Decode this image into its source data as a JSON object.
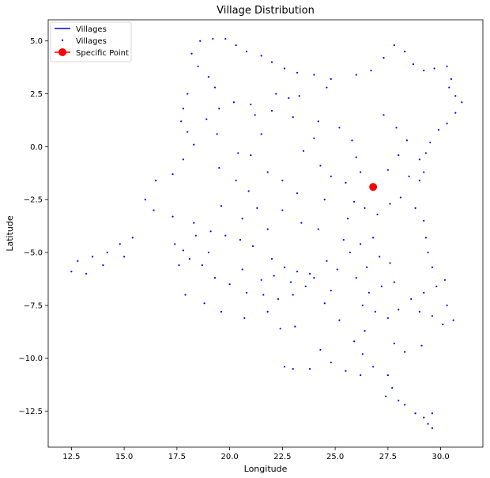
{
  "chart_data": {
    "type": "scatter",
    "title": "Village Distribution",
    "xlabel": "Longitude",
    "ylabel": "Latitude",
    "xlim": [
      11.4,
      32.0
    ],
    "ylim": [
      -14.2,
      6.0
    ],
    "xticks": [
      12.5,
      15.0,
      17.5,
      20.0,
      22.5,
      25.0,
      27.5,
      30.0
    ],
    "xtick_labels": [
      "12.5",
      "15.0",
      "17.5",
      "20.0",
      "22.5",
      "25.0",
      "27.5",
      "30.0"
    ],
    "yticks": [
      5.0,
      2.5,
      0.0,
      -2.5,
      -5.0,
      -7.5,
      -10.0,
      -12.5
    ],
    "ytick_labels": [
      "5.0",
      "2.5",
      "0.0",
      "−2.5",
      "−5.0",
      "−7.5",
      "−10.0",
      "−12.5"
    ],
    "grid": false,
    "legend_position": "upper left",
    "legend": [
      {
        "label": "Villages",
        "marker": "line",
        "color": "#0000ff"
      },
      {
        "label": "Villages",
        "marker": "dot",
        "color": "#0000ff"
      },
      {
        "label": "Specific Point",
        "marker": "circle-line",
        "color": "#ff0000"
      }
    ],
    "series": [
      {
        "name": "Villages",
        "color": "#0000ff",
        "marker": "dot",
        "points": [
          [
            18.6,
            5.0
          ],
          [
            19.2,
            5.1
          ],
          [
            19.8,
            5.1
          ],
          [
            20.3,
            4.8
          ],
          [
            20.8,
            4.5
          ],
          [
            21.5,
            4.3
          ],
          [
            18.2,
            4.4
          ],
          [
            18.5,
            3.8
          ],
          [
            19.0,
            3.3
          ],
          [
            19.3,
            2.8
          ],
          [
            18.0,
            2.5
          ],
          [
            17.8,
            1.8
          ],
          [
            17.7,
            1.2
          ],
          [
            22.0,
            4.0
          ],
          [
            22.6,
            3.7
          ],
          [
            23.2,
            3.5
          ],
          [
            24.0,
            3.4
          ],
          [
            24.8,
            3.2
          ],
          [
            22.2,
            2.5
          ],
          [
            22.8,
            2.3
          ],
          [
            23.3,
            2.4
          ],
          [
            24.6,
            2.8
          ],
          [
            26.0,
            3.4
          ],
          [
            26.7,
            3.6
          ],
          [
            27.3,
            4.2
          ],
          [
            27.8,
            4.8
          ],
          [
            28.3,
            4.5
          ],
          [
            28.7,
            3.9
          ],
          [
            29.2,
            3.6
          ],
          [
            29.7,
            3.7
          ],
          [
            30.3,
            3.8
          ],
          [
            30.5,
            3.2
          ],
          [
            30.4,
            2.8
          ],
          [
            30.7,
            2.4
          ],
          [
            31.0,
            2.1
          ],
          [
            30.7,
            1.6
          ],
          [
            30.3,
            1.1
          ],
          [
            29.9,
            0.8
          ],
          [
            29.5,
            0.2
          ],
          [
            29.3,
            -0.3
          ],
          [
            29.0,
            -0.6
          ],
          [
            29.2,
            -1.2
          ],
          [
            29.0,
            -1.6
          ],
          [
            20.2,
            2.1
          ],
          [
            21.0,
            2.0
          ],
          [
            22.0,
            1.7
          ],
          [
            23.0,
            1.4
          ],
          [
            24.2,
            1.2
          ],
          [
            25.2,
            0.9
          ],
          [
            25.8,
            0.3
          ],
          [
            26.0,
            -0.5
          ],
          [
            26.2,
            -1.2
          ],
          [
            25.5,
            -1.7
          ],
          [
            21.2,
            1.5
          ],
          [
            21.5,
            0.6
          ],
          [
            21.0,
            -0.4
          ],
          [
            21.8,
            -1.2
          ],
          [
            22.5,
            -1.6
          ],
          [
            23.2,
            -2.2
          ],
          [
            24.5,
            -2.5
          ],
          [
            18.0,
            0.7
          ],
          [
            18.3,
            0.1
          ],
          [
            17.8,
            -0.6
          ],
          [
            17.3,
            -1.3
          ],
          [
            16.5,
            -1.6
          ],
          [
            16.0,
            -2.5
          ],
          [
            16.4,
            -3.0
          ],
          [
            17.3,
            -3.3
          ],
          [
            18.3,
            -3.6
          ],
          [
            19.5,
            -1.0
          ],
          [
            20.3,
            -1.6
          ],
          [
            20.9,
            -2.1
          ],
          [
            19.6,
            -2.8
          ],
          [
            20.6,
            -3.4
          ],
          [
            21.8,
            -3.9
          ],
          [
            15.4,
            -4.3
          ],
          [
            14.8,
            -4.6
          ],
          [
            14.2,
            -5.0
          ],
          [
            13.5,
            -5.2
          ],
          [
            12.8,
            -5.4
          ],
          [
            12.5,
            -5.9
          ],
          [
            13.2,
            -6.0
          ],
          [
            14.0,
            -5.6
          ],
          [
            15.0,
            -5.2
          ],
          [
            17.4,
            -4.6
          ],
          [
            17.8,
            -4.9
          ],
          [
            18.1,
            -5.3
          ],
          [
            17.6,
            -5.6
          ],
          [
            18.4,
            -4.2
          ],
          [
            19.1,
            -4.0
          ],
          [
            19.8,
            -4.2
          ],
          [
            20.5,
            -4.4
          ],
          [
            21.1,
            -4.7
          ],
          [
            19.0,
            -5.0
          ],
          [
            18.7,
            -5.6
          ],
          [
            19.3,
            -6.2
          ],
          [
            20.0,
            -6.5
          ],
          [
            20.8,
            -6.9
          ],
          [
            21.6,
            -7.0
          ],
          [
            22.3,
            -7.2
          ],
          [
            23.0,
            -7.0
          ],
          [
            23.6,
            -6.6
          ],
          [
            24.0,
            -6.2
          ],
          [
            22.0,
            -5.3
          ],
          [
            22.6,
            -5.7
          ],
          [
            23.2,
            -5.9
          ],
          [
            23.8,
            -6.0
          ],
          [
            22.9,
            -6.4
          ],
          [
            22.1,
            -6.1
          ],
          [
            21.5,
            -6.3
          ],
          [
            20.6,
            -5.8
          ],
          [
            17.9,
            -7.0
          ],
          [
            18.8,
            -7.4
          ],
          [
            19.6,
            -7.8
          ],
          [
            20.7,
            -8.1
          ],
          [
            21.8,
            -7.8
          ],
          [
            22.4,
            -8.6
          ],
          [
            23.1,
            -8.5
          ],
          [
            24.3,
            -9.6
          ],
          [
            24.8,
            -10.2
          ],
          [
            25.5,
            -10.6
          ],
          [
            26.2,
            -10.8
          ],
          [
            26.8,
            -10.4
          ],
          [
            22.6,
            -10.4
          ],
          [
            23.0,
            -10.5
          ],
          [
            23.8,
            -10.5
          ],
          [
            25.7,
            -5.0
          ],
          [
            26.2,
            -4.6
          ],
          [
            26.8,
            -4.3
          ],
          [
            27.1,
            -5.2
          ],
          [
            27.6,
            -5.5
          ],
          [
            26.5,
            -5.7
          ],
          [
            26.0,
            -6.2
          ],
          [
            26.6,
            -6.9
          ],
          [
            27.2,
            -6.6
          ],
          [
            27.8,
            -6.4
          ],
          [
            26.3,
            -7.5
          ],
          [
            26.9,
            -7.8
          ],
          [
            27.5,
            -8.1
          ],
          [
            28.0,
            -7.7
          ],
          [
            28.6,
            -7.2
          ],
          [
            29.2,
            -6.9
          ],
          [
            29.8,
            -6.6
          ],
          [
            30.2,
            -6.3
          ],
          [
            29.6,
            -5.7
          ],
          [
            29.4,
            -5.0
          ],
          [
            29.3,
            -4.3
          ],
          [
            29.2,
            -3.5
          ],
          [
            28.8,
            -2.9
          ],
          [
            28.1,
            -2.4
          ],
          [
            27.6,
            -2.7
          ],
          [
            27.0,
            -3.2
          ],
          [
            26.4,
            -2.9
          ],
          [
            25.9,
            -2.6
          ],
          [
            25.6,
            -3.4
          ],
          [
            29.0,
            -7.8
          ],
          [
            29.6,
            -8.0
          ],
          [
            30.1,
            -8.4
          ],
          [
            30.6,
            -8.2
          ],
          [
            30.3,
            -7.5
          ],
          [
            27.8,
            -9.3
          ],
          [
            28.3,
            -9.7
          ],
          [
            29.1,
            -9.4
          ],
          [
            27.5,
            -10.8
          ],
          [
            27.7,
            -11.4
          ],
          [
            27.4,
            -11.8
          ],
          [
            28.0,
            -12.0
          ],
          [
            28.3,
            -12.2
          ],
          [
            28.8,
            -12.6
          ],
          [
            29.2,
            -12.8
          ],
          [
            29.6,
            -12.6
          ],
          [
            29.4,
            -13.1
          ],
          [
            29.6,
            -13.3
          ],
          [
            26.4,
            -8.7
          ],
          [
            25.9,
            -9.2
          ],
          [
            26.3,
            -9.8
          ],
          [
            25.2,
            -8.2
          ],
          [
            24.5,
            -7.4
          ],
          [
            24.8,
            -6.8
          ],
          [
            25.1,
            -5.8
          ],
          [
            24.6,
            -5.4
          ],
          [
            25.4,
            -4.4
          ],
          [
            24.0,
            0.4
          ],
          [
            23.5,
            -0.2
          ],
          [
            24.3,
            -0.9
          ],
          [
            24.8,
            -1.4
          ],
          [
            27.3,
            1.5
          ],
          [
            27.9,
            0.9
          ],
          [
            28.4,
            0.3
          ],
          [
            28.0,
            -0.4
          ],
          [
            27.5,
            -1.1
          ],
          [
            28.5,
            -1.4
          ],
          [
            22.5,
            -3.0
          ],
          [
            23.4,
            -3.6
          ],
          [
            24.2,
            -3.9
          ],
          [
            21.3,
            -2.9
          ],
          [
            20.4,
            -0.3
          ],
          [
            19.4,
            0.6
          ],
          [
            18.9,
            1.3
          ],
          [
            19.5,
            1.8
          ]
        ]
      },
      {
        "name": "Specific Point",
        "color": "#ff0000",
        "marker": "circle",
        "points": [
          [
            26.8,
            -1.9
          ]
        ]
      }
    ]
  }
}
